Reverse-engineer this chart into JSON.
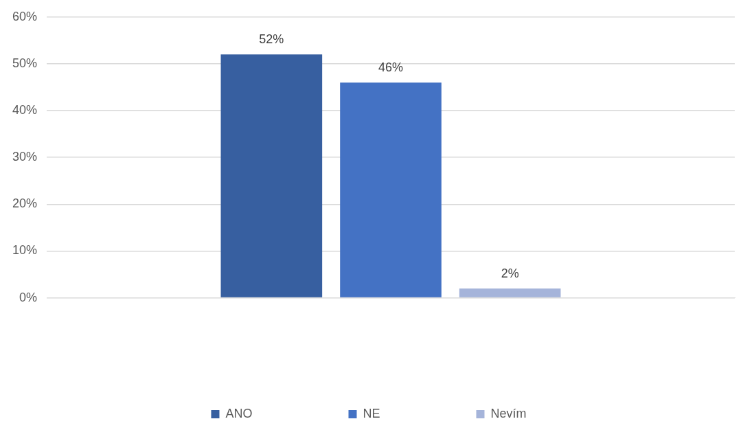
{
  "chart_data": {
    "type": "bar",
    "categories": [
      null
    ],
    "series": [
      {
        "name": "ANO",
        "color": "#375fa0",
        "values": [
          52
        ],
        "value_labels": [
          "52%"
        ]
      },
      {
        "name": "NE",
        "color": "#4472c4",
        "values": [
          46
        ],
        "value_labels": [
          "46%"
        ]
      },
      {
        "name": "Nevím",
        "color": "#a5b4da",
        "values": [
          2
        ],
        "value_labels": [
          "2%"
        ]
      }
    ],
    "ylim": [
      0,
      60
    ],
    "yticks": [
      {
        "value": 0,
        "label": "0%"
      },
      {
        "value": 10,
        "label": "10%"
      },
      {
        "value": 20,
        "label": "20%"
      },
      {
        "value": 30,
        "label": "30%"
      },
      {
        "value": 40,
        "label": "40%"
      },
      {
        "value": 50,
        "label": "50%"
      },
      {
        "value": 60,
        "label": "60%"
      }
    ],
    "grid": "y",
    "legend": "bottom"
  }
}
